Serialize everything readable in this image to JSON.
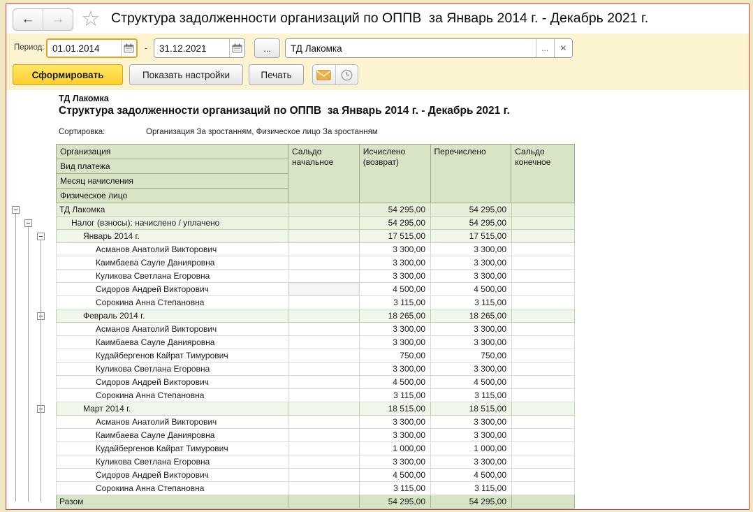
{
  "window": {
    "title": "Структура задолженности организаций по ОППВ  за Январь 2014 г. - Декабрь 2021 г.",
    "nav": {
      "back_icon": "←",
      "forward_icon": "→",
      "favorite_icon": "☆"
    }
  },
  "filters": {
    "period_label": "Период:",
    "date_from": "01.01.2014",
    "date_to": "31.12.2021",
    "dash": "-",
    "more_button": "...",
    "organization": "ТД Лакомка",
    "org_more_button": "...",
    "org_clear_button": "✕"
  },
  "toolbar": {
    "generate_label": "Сформировать",
    "settings_label": "Показать настройки",
    "print_label": "Печать"
  },
  "report": {
    "org_line": "ТД Лакомка",
    "title": "Структура задолженности организаций по ОППВ  за Январь 2014 г. - Декабрь 2021 г.",
    "sort_label": "Сортировка:",
    "sort_value": "Организация За зростанням, Физическое лицо За зростанням",
    "columns": {
      "stack": [
        "Организация",
        "Вид платежа",
        "Месяц начисления",
        "Физическое лицо"
      ],
      "values": [
        "Сальдо начальное",
        "Исчислено (возврат)",
        "Перечислено",
        "Сальдо конечное"
      ]
    },
    "selected_cell": {
      "row_index": 6,
      "value_col": 0
    },
    "rows": [
      {
        "label": "ТД Лакомка",
        "level": 1,
        "type": "g1",
        "minus": true,
        "values": [
          "",
          "54 295,00",
          "54 295,00",
          ""
        ]
      },
      {
        "label": "Налог (взносы): начислено / уплачено",
        "level": 2,
        "type": "g2",
        "minus": true,
        "values": [
          "",
          "54 295,00",
          "54 295,00",
          ""
        ]
      },
      {
        "label": "Январь 2014 г.",
        "level": 3,
        "type": "g3",
        "minus": true,
        "values": [
          "",
          "17 515,00",
          "17 515,00",
          ""
        ]
      },
      {
        "label": "Асманов Анатолий Викторович",
        "level": 4,
        "type": "d",
        "values": [
          "",
          "3 300,00",
          "3 300,00",
          ""
        ]
      },
      {
        "label": "Каимбаева Сауле Данияровна",
        "level": 4,
        "type": "d",
        "values": [
          "",
          "3 300,00",
          "3 300,00",
          ""
        ]
      },
      {
        "label": "Куликова Светлана Егоровна",
        "level": 4,
        "type": "d",
        "values": [
          "",
          "3 300,00",
          "3 300,00",
          ""
        ]
      },
      {
        "label": "Сидоров Андрей Викторович",
        "level": 4,
        "type": "d",
        "values": [
          "",
          "4 500,00",
          "4 500,00",
          ""
        ]
      },
      {
        "label": "Сорокина Анна Степановна",
        "level": 4,
        "type": "d",
        "values": [
          "",
          "3 115,00",
          "3 115,00",
          ""
        ]
      },
      {
        "label": "Февраль 2014 г.",
        "level": 3,
        "type": "g3",
        "minus": true,
        "values": [
          "",
          "18 265,00",
          "18 265,00",
          ""
        ]
      },
      {
        "label": "Асманов Анатолий Викторович",
        "level": 4,
        "type": "d",
        "values": [
          "",
          "3 300,00",
          "3 300,00",
          ""
        ]
      },
      {
        "label": "Каимбаева Сауле Данияровна",
        "level": 4,
        "type": "d",
        "values": [
          "",
          "3 300,00",
          "3 300,00",
          ""
        ]
      },
      {
        "label": "Кудайбергенов Кайрат Тимурович",
        "level": 4,
        "type": "d",
        "values": [
          "",
          "750,00",
          "750,00",
          ""
        ]
      },
      {
        "label": "Куликова Светлана Егоровна",
        "level": 4,
        "type": "d",
        "values": [
          "",
          "3 300,00",
          "3 300,00",
          ""
        ]
      },
      {
        "label": "Сидоров Андрей Викторович",
        "level": 4,
        "type": "d",
        "values": [
          "",
          "4 500,00",
          "4 500,00",
          ""
        ]
      },
      {
        "label": "Сорокина Анна Степановна",
        "level": 4,
        "type": "d",
        "values": [
          "",
          "3 115,00",
          "3 115,00",
          ""
        ]
      },
      {
        "label": "Март 2014 г.",
        "level": 3,
        "type": "g3",
        "minus": true,
        "values": [
          "",
          "18 515,00",
          "18 515,00",
          ""
        ]
      },
      {
        "label": "Асманов Анатолий Викторович",
        "level": 4,
        "type": "d",
        "values": [
          "",
          "3 300,00",
          "3 300,00",
          ""
        ]
      },
      {
        "label": "Каимбаева Сауле Данияровна",
        "level": 4,
        "type": "d",
        "values": [
          "",
          "3 300,00",
          "3 300,00",
          ""
        ]
      },
      {
        "label": "Кудайбергенов Кайрат Тимурович",
        "level": 4,
        "type": "d",
        "values": [
          "",
          "1 000,00",
          "1 000,00",
          ""
        ]
      },
      {
        "label": "Куликова Светлана Егоровна",
        "level": 4,
        "type": "d",
        "values": [
          "",
          "3 300,00",
          "3 300,00",
          ""
        ]
      },
      {
        "label": "Сидоров Андрей Викторович",
        "level": 4,
        "type": "d",
        "values": [
          "",
          "4 500,00",
          "4 500,00",
          ""
        ]
      },
      {
        "label": "Сорокина Анна Степановна",
        "level": 4,
        "type": "d",
        "values": [
          "",
          "3 115,00",
          "3 115,00",
          ""
        ]
      },
      {
        "label": "Разом",
        "level": 1,
        "type": "total",
        "values": [
          "",
          "54 295,00",
          "54 295,00",
          ""
        ]
      }
    ]
  },
  "colors": {
    "window_border": "#d93a3a",
    "toolbar_bg": "#fcf3d1",
    "header_green": "#d8e4c6",
    "group_green_1": "#e7efda",
    "group_green_2": "#ecf3e1",
    "group_green_3": "#f0f6e9",
    "generate_button": "#fbcf2e",
    "focus_border": "#e2a321"
  }
}
